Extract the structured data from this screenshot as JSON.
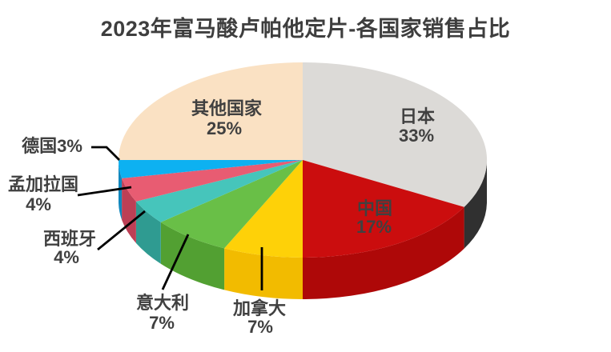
{
  "page": {
    "background_color": "#ffffff"
  },
  "chart_data": {
    "type": "pie",
    "variant": "3d-pie",
    "title": "2023年富马酸卢帕他定片-各国家销售占比",
    "title_color": "#3e3e3e",
    "unit": "%",
    "direction": "clockwise",
    "start_angle_deg": 0,
    "legend_position": "none",
    "label_style": "name-and-percent-on-or-near-slice",
    "label_color": "#404040",
    "leader_line_color": "#000000",
    "series": [
      {
        "label": "日本",
        "value": 33,
        "color": "#dcdad7",
        "side_color": "#303030"
      },
      {
        "label": "中国",
        "value": 17,
        "color": "#cb0d0e",
        "side_color": "#ae0808"
      },
      {
        "label": "加拿大",
        "value": 7,
        "color": "#fed108",
        "side_color": "#f2bb00"
      },
      {
        "label": "意大利",
        "value": 7,
        "color": "#69bf47",
        "side_color": "#52a032"
      },
      {
        "label": "西班牙",
        "value": 4,
        "color": "#46c5bb",
        "side_color": "#2f9b91"
      },
      {
        "label": "孟加拉国",
        "value": 4,
        "color": "#e85c72",
        "side_color": "#bd3f55"
      },
      {
        "label": "德国",
        "value": 3,
        "color": "#0db1f1",
        "side_color": "#1187bd"
      },
      {
        "label": "其他国家",
        "value": 25,
        "color": "#fae1c3",
        "side_color": "#d8af85"
      }
    ]
  }
}
